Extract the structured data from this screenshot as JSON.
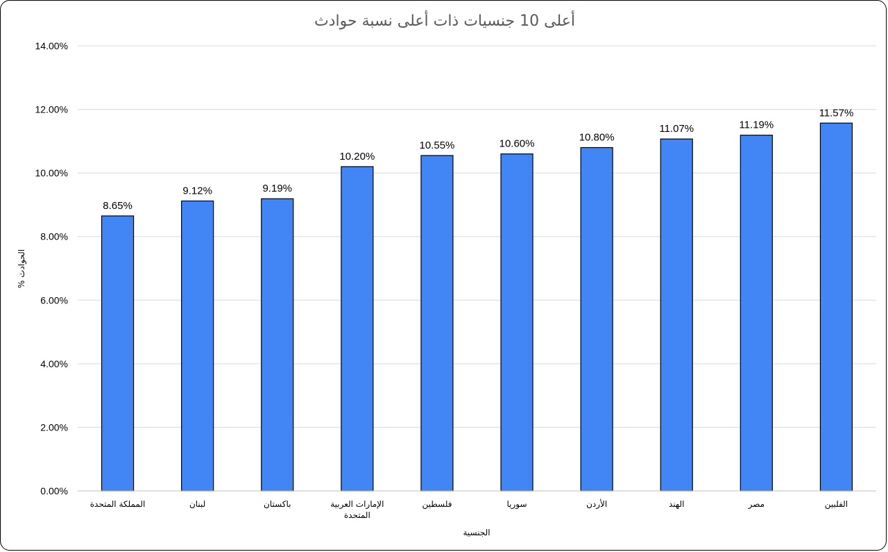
{
  "chart_data": {
    "type": "bar",
    "title": "أعلى 10 جنسيات ذات أعلى نسبة حوادث",
    "xlabel": "الجنسية",
    "ylabel": "الحوادث %",
    "categories": [
      "المملكة المتحدة",
      "لبنان",
      "باكستان",
      "الإمارات العربية المتحدة",
      "فلسطين",
      "سوريا",
      "الأردن",
      "الهند",
      "مصر",
      "الفلبين"
    ],
    "category_lines": [
      [
        "المملكة المتحدة"
      ],
      [
        "لبنان"
      ],
      [
        "باكستان"
      ],
      [
        "الإمارات العربية",
        "المتحدة"
      ],
      [
        "فلسطين"
      ],
      [
        "سوريا"
      ],
      [
        "الأردن"
      ],
      [
        "الهند"
      ],
      [
        "مصر"
      ],
      [
        "الفلبين"
      ]
    ],
    "values": [
      8.65,
      9.12,
      9.19,
      10.2,
      10.55,
      10.6,
      10.8,
      11.07,
      11.19,
      11.57
    ],
    "data_labels": [
      "8.65%",
      "9.12%",
      "9.19%",
      "10.20%",
      "10.55%",
      "10.60%",
      "10.80%",
      "11.07%",
      "11.19%",
      "11.57%"
    ],
    "ylim": [
      0,
      14
    ],
    "yticks": [
      0,
      2,
      4,
      6,
      8,
      10,
      12,
      14
    ],
    "ytick_labels": [
      "0.00%",
      "2.00%",
      "4.00%",
      "6.00%",
      "8.00%",
      "10.00%",
      "12.00%",
      "14.00%"
    ],
    "grid": true,
    "legend": "none",
    "bar_color": "#4285f4",
    "bar_edge_color": "#000000",
    "grid_color": "#d9d9d9"
  }
}
